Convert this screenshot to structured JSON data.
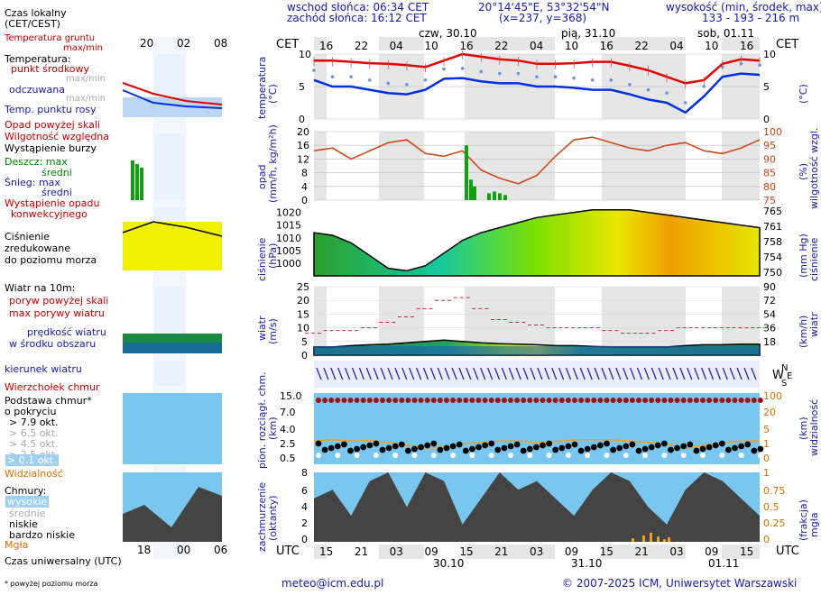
{
  "header": {
    "sunrise": "wschod słońca: 06:34 CET",
    "sunset": "zachód słońca: 16:12 CET",
    "coords": "20°14'45\"E, 53°32'54\"N",
    "grid": "(x=237,  y=368)",
    "elevation_label": "wysokość (min, środek, max)",
    "elevation_values": "133 - 193 - 216 m"
  },
  "legend": {
    "local_time": "Czas lokalny",
    "local_time_sub": "(CET/CEST)",
    "soil_temp": "Temperatura gruntu",
    "soil_temp_sub": "max/min",
    "temperature": "Temperatura:",
    "temp_mid": "punkt środkowy",
    "temp_maxmin": "max/min",
    "temp_felt": "odczuwana",
    "temp_felt_maxmin": "max/min",
    "dew_point": "Temp. punktu rosy",
    "precip_above_scale": "Opad powyżej skali",
    "humidity": "Wilgotność względna",
    "storm": "Wystąpienie burzy",
    "rain_max": "Deszcz: max",
    "rain_avg": "średni",
    "snow_max": "Śnieg:    max",
    "snow_avg": "średni",
    "convective": "Wystąpienie opadu",
    "convective2": "konwekcyjnego",
    "pressure1": "Ciśnienie",
    "pressure2": "zredukowane",
    "pressure3": "do poziomu morza",
    "wind_title": "Wiatr na 10m:",
    "gust_above": "poryw powyżej skali",
    "gust_max": "max porywy wiatru",
    "wind_speed": "prędkość wiatru",
    "wind_speed2": "w środku obszaru",
    "wind_dir": "kierunek wiatru",
    "cloud_top": "Wierzchołek chmur",
    "cloud_base": "Podstawa chmur*",
    "cloud_base2": "o pokryciu",
    "okt1": "> 7.9 okt.",
    "okt2": "> 6.5 okt.",
    "okt3": "> 4.5 okt.",
    "okt4": "> 2.5 okt.",
    "okt5": "> 0.1 okt.",
    "visibility": "Widzialność",
    "clouds": "Chmury:",
    "cl_high": "wysokie",
    "cl_mid": "średnie",
    "cl_low": "niskie",
    "cl_vlow": "bardzo niskie",
    "fog": "Mgła",
    "utc": "Czas uniwersalny (UTC)",
    "footnote": "* powyżej poziomu morza"
  },
  "axis_labels": {
    "cet": "CET",
    "utc": "UTC",
    "temp_left": "temperatura",
    "temp_unit": "(°C)",
    "precip_left": "opad",
    "precip_unit": "(mm/h, kg/m²h)",
    "humid_right": "wilgotność wzgl.",
    "humid_unit": "(%)",
    "press_left": "ciśnienie",
    "press_unit": "(hPa)",
    "press_right": "ciśnienie",
    "press_right_unit": "(mm Hg)",
    "wind_left": "wiatr",
    "wind_unit": "(m/s)",
    "wind_right": "wiatr",
    "wind_right_unit": "(km/h)",
    "cloud_left": "pion. rozciągł. chm.",
    "cloud_unit": "(km)",
    "vis_right": "widzialność",
    "vis_unit": "(km)",
    "cover_left": "zachmurzenie",
    "cover_unit": "(oktanty)",
    "fog_right": "mgła",
    "fog_unit": "(frakcja)"
  },
  "days": {
    "d1": "czw, 30.10",
    "d2": "pią, 31.10",
    "d3": "sob, 01.11",
    "u1": "30.10",
    "u2": "31.10",
    "u3": "01.11"
  },
  "footer": {
    "email": "meteo@icm.edu.pl",
    "copyright": "© 2007-2025 ICM, Uniwersytet Warszawski"
  },
  "colors": {
    "temp": "#e00000",
    "dew": "#0030e0",
    "humidity": "#d04010",
    "rain": "#10a010",
    "night": "#e6e6e6",
    "cloud_sky": "#79c6ee",
    "visibility": "#f0a020"
  },
  "chart_data": [
    {
      "type": "line",
      "panel": "temperature",
      "x_utc_hours": [
        0,
        3,
        6,
        9,
        12,
        15,
        18,
        21,
        24,
        27,
        30,
        33,
        36,
        39,
        42,
        45,
        48,
        51,
        54,
        57,
        60,
        63,
        66,
        69,
        72
      ],
      "x_start": "30.10 13 UTC",
      "ylim": [
        0,
        10
      ],
      "series": [
        {
          "name": "punkt środkowy",
          "values": [
            9.0,
            9.0,
            8.8,
            8.6,
            8.5,
            8.3,
            8.0,
            9.0,
            10.0,
            9.6,
            9.2,
            9.0,
            8.5,
            8.5,
            8.6,
            8.8,
            8.8,
            8.2,
            7.5,
            6.5,
            5.5,
            6.0,
            8.5,
            9.2,
            9.0
          ]
        },
        {
          "name": "Temp. punktu rosy",
          "values": [
            6.0,
            5.0,
            5.0,
            4.5,
            4.0,
            3.8,
            4.5,
            6.2,
            6.3,
            5.8,
            5.5,
            5.5,
            5.0,
            5.0,
            4.8,
            4.5,
            4.5,
            3.8,
            3.0,
            2.5,
            1.0,
            3.5,
            6.5,
            7.0,
            6.8
          ]
        }
      ]
    },
    {
      "type": "line",
      "panel": "humidity",
      "ylim": [
        75,
        100
      ],
      "values": [
        93,
        94,
        90,
        93,
        96,
        97,
        92,
        91,
        93,
        86,
        83,
        81,
        84,
        91,
        97,
        98,
        96,
        94,
        93,
        95,
        96,
        93,
        92,
        94,
        97
      ]
    },
    {
      "type": "area",
      "panel": "pressure",
      "ylim": [
        995,
        1022
      ],
      "values": [
        1012,
        1011,
        1008,
        1003,
        998,
        997,
        999,
        1004,
        1009,
        1012,
        1014,
        1016,
        1018,
        1019,
        1020,
        1021,
        1021,
        1021,
        1020,
        1019,
        1018,
        1017,
        1016,
        1015,
        1014
      ]
    },
    {
      "type": "line",
      "panel": "wind",
      "ylim": [
        0,
        25
      ],
      "series": [
        {
          "name": "max porywy wiatru",
          "values": [
            8,
            9,
            9,
            10,
            12,
            14,
            17,
            20,
            21,
            17,
            13,
            12,
            11,
            10,
            10,
            10,
            9,
            8,
            8,
            9,
            10,
            10,
            10,
            10,
            10
          ]
        },
        {
          "name": "prędkość wiatru",
          "values": [
            3,
            3,
            3.5,
            3.8,
            4,
            4.5,
            5,
            5.5,
            5,
            4.5,
            4.2,
            4,
            3.8,
            3.5,
            3.5,
            3.2,
            3,
            3,
            3,
            3,
            3.5,
            3.8,
            3.8,
            4,
            4
          ]
        }
      ]
    },
    {
      "type": "line",
      "panel": "visibility",
      "ylim": [
        0,
        100
      ],
      "values": [
        30,
        32,
        30,
        31,
        28,
        25,
        20,
        22,
        26,
        28,
        30,
        30,
        28,
        29,
        32,
        32,
        32,
        30,
        28,
        26,
        20,
        24,
        28,
        30,
        30
      ]
    }
  ]
}
